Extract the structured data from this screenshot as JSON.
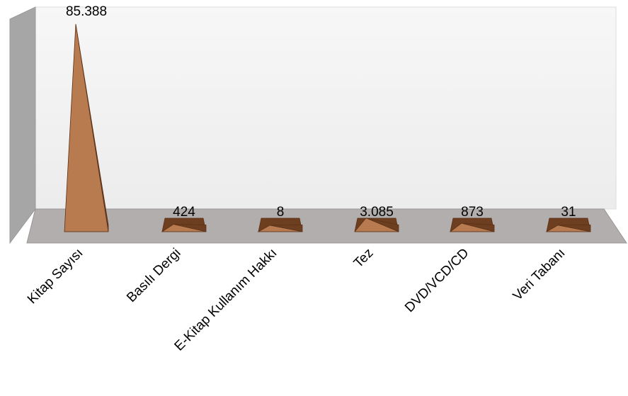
{
  "chart_data": {
    "type": "bar",
    "style": "3d-pyramid",
    "categories": [
      "Kitap Sayısı",
      "Basılı Dergi",
      "E-Kitap Kullanım Hakkı",
      "Tez",
      "DVD/VCD/CD",
      "Veri Tabanı"
    ],
    "values": [
      85388,
      424,
      8,
      3085,
      873,
      31
    ],
    "data_labels": [
      "85.388",
      "424",
      "8",
      "3.085",
      "873",
      "31"
    ],
    "ylim": [
      0,
      85388
    ],
    "grid": false,
    "colors": {
      "bar_light": "#b87a4f",
      "bar_dark": "#6e3e20",
      "wall": "#f4f4f4",
      "side_wall": "#a6a6a6",
      "floor": "#b2aeae"
    }
  }
}
